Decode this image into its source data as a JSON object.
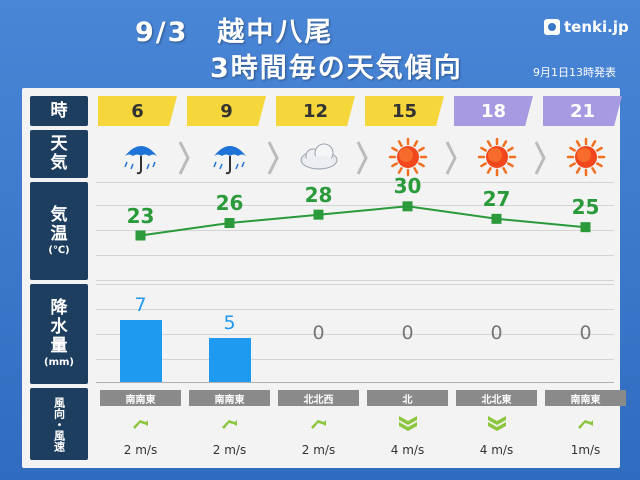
{
  "header": {
    "line1": "9/3　越中八尾",
    "line2": "3時間毎の天気傾向",
    "logo": "tenki.jp",
    "issued": "9月1日13時発表"
  },
  "labels": {
    "hour": "時",
    "weather": [
      "天",
      "気"
    ],
    "temp": [
      "気",
      "温"
    ],
    "temp_unit": "(℃)",
    "precip": [
      "降",
      "水",
      "量"
    ],
    "precip_unit": "(mm)",
    "wind": "風向・風速"
  },
  "columns": [
    {
      "hour": "6",
      "period": "day",
      "weather": "rain-umbrella-icon",
      "temp": "23",
      "precip": "7",
      "wind_dir": "南南東",
      "wind_speed": "2 m/s",
      "wind_level": 1
    },
    {
      "hour": "9",
      "period": "day",
      "weather": "rain-umbrella-icon",
      "temp": "26",
      "precip": "5",
      "wind_dir": "南南東",
      "wind_speed": "2 m/s",
      "wind_level": 1
    },
    {
      "hour": "12",
      "period": "day",
      "weather": "cloud-icon",
      "temp": "28",
      "precip": "0",
      "wind_dir": "北北西",
      "wind_speed": "2 m/s",
      "wind_level": 1
    },
    {
      "hour": "15",
      "period": "day",
      "weather": "sun-icon",
      "temp": "30",
      "precip": "0",
      "wind_dir": "北",
      "wind_speed": "4 m/s",
      "wind_level": 2
    },
    {
      "hour": "18",
      "period": "night",
      "weather": "sun-icon",
      "temp": "27",
      "precip": "0",
      "wind_dir": "北北東",
      "wind_speed": "4 m/s",
      "wind_level": 2
    },
    {
      "hour": "21",
      "period": "night",
      "weather": "sun-icon",
      "temp": "25",
      "precip": "0",
      "wind_dir": "南南東",
      "wind_speed": "1m/s",
      "wind_level": 1
    }
  ],
  "colors": {
    "temp": "#2a9a3a",
    "precip_bar": "#1e9af0",
    "precip_text_nonzero": "#1e9af0",
    "precip_text_zero": "#777777",
    "day_header": "#f5d73c",
    "night_header": "#a89ae2",
    "label_bg": "#1e3e5f",
    "wind_arrow": "#8cc63f"
  }
}
